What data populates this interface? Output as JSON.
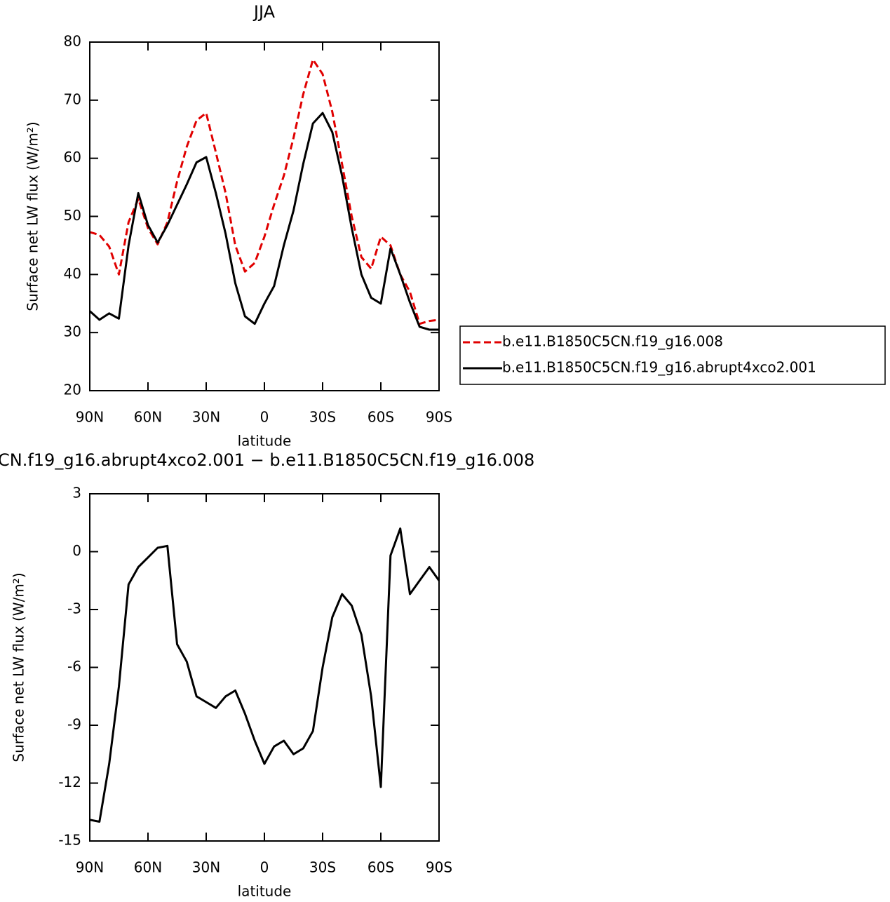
{
  "chart_data": [
    {
      "type": "line",
      "title": "JJA",
      "xlabel": "latitude",
      "ylabel": "Surface net LW flux (W/m²)",
      "x": [
        90,
        85,
        80,
        75,
        70,
        65,
        60,
        55,
        50,
        45,
        40,
        35,
        30,
        25,
        20,
        15,
        10,
        5,
        0,
        -5,
        -10,
        -15,
        -20,
        -25,
        -30,
        -35,
        -40,
        -45,
        -50,
        -55,
        -60,
        -65,
        -70,
        -75,
        -80,
        -85,
        -90
      ],
      "series": [
        {
          "name": "b.e11.B1850C5CN.f19_g16.008",
          "color": "#e00000",
          "style": "dashed",
          "values": [
            47.3,
            46.8,
            44.8,
            40,
            49,
            53,
            48,
            45.2,
            49,
            56,
            62,
            66.5,
            67.8,
            61,
            54,
            45,
            40.5,
            42,
            46.5,
            52,
            57,
            63.5,
            71,
            77,
            74.5,
            68,
            59,
            50,
            43,
            41,
            46.5,
            45,
            40,
            37,
            31.5,
            32,
            32.2
          ]
        },
        {
          "name": "b.e11.B1850C5CN.f19_g16.abrupt4xco2.001",
          "color": "#000000",
          "style": "solid",
          "values": [
            33.7,
            32.2,
            33.3,
            32.4,
            45,
            54,
            48.5,
            45.5,
            48.5,
            52,
            55.5,
            59.3,
            60.2,
            54,
            47,
            38.5,
            32.8,
            31.5,
            35,
            38,
            45,
            51,
            59,
            66,
            67.8,
            64.5,
            57,
            48,
            40,
            36,
            35,
            44.5,
            40,
            35.2,
            31,
            30.5,
            30.5
          ]
        }
      ],
      "xlim": [
        90,
        -90
      ],
      "xticks": [
        {
          "value": 90,
          "label": "90N"
        },
        {
          "value": 60,
          "label": "60N"
        },
        {
          "value": 30,
          "label": "30N"
        },
        0,
        {
          "value": -30,
          "label": "30S"
        },
        {
          "value": -60,
          "label": "60S"
        },
        {
          "value": -90,
          "label": "90S"
        }
      ],
      "ylim": [
        20,
        80
      ],
      "yticks": [
        20,
        30,
        40,
        50,
        60,
        70,
        80
      ],
      "legend": "right"
    },
    {
      "type": "line",
      "title": "CN.f19_g16.abrupt4xco2.001 − b.e11.B1850C5CN.f19_g16.008",
      "xlabel": "latitude",
      "ylabel": "Surface net LW flux (W/m²)",
      "x": [
        90,
        85,
        80,
        75,
        70,
        65,
        60,
        55,
        50,
        45,
        40,
        35,
        30,
        25,
        20,
        15,
        10,
        5,
        0,
        -5,
        -10,
        -15,
        -20,
        -25,
        -30,
        -35,
        -40,
        -45,
        -50,
        -55,
        -60,
        -65,
        -70,
        -75,
        -80,
        -85,
        -90
      ],
      "series": [
        {
          "color": "#000000",
          "style": "solid",
          "values": [
            -13.9,
            -14,
            -11,
            -7,
            -1.7,
            -0.8,
            -0.3,
            0.2,
            0.3,
            -4.8,
            -5.7,
            -7.5,
            -7.8,
            -8.1,
            -7.5,
            -7.2,
            -8.4,
            -9.8,
            -11,
            -10.1,
            -9.8,
            -10.5,
            -10.2,
            -9.3,
            -6,
            -3.4,
            -2.2,
            -2.8,
            -4.3,
            -7.5,
            -12.2,
            -0.2,
            1.2,
            -2.2,
            -1.5,
            -0.8,
            -1.5
          ]
        }
      ],
      "xlim": [
        90,
        -90
      ],
      "xticks": [
        {
          "value": 90,
          "label": "90N"
        },
        {
          "value": 60,
          "label": "60N"
        },
        {
          "value": 30,
          "label": "30N"
        },
        0,
        {
          "value": -30,
          "label": "30S"
        },
        {
          "value": -60,
          "label": "60S"
        },
        {
          "value": -90,
          "label": "90S"
        }
      ],
      "ylim": [
        -15,
        3
      ],
      "yticks": [
        -15,
        -12,
        -9,
        -6,
        -3,
        0,
        3
      ]
    }
  ]
}
